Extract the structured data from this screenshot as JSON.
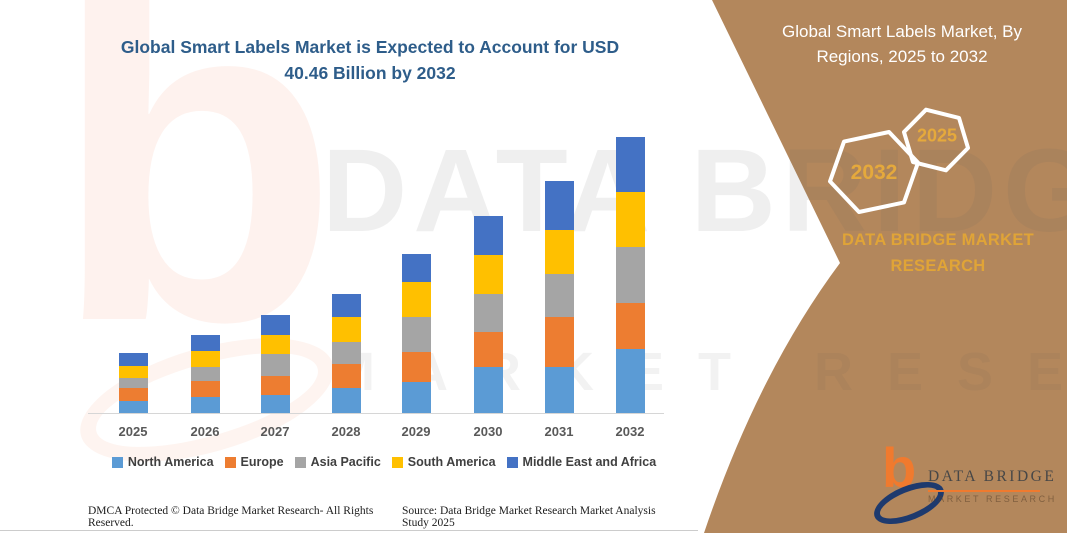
{
  "title": "Global Smart Labels Market is Expected to Account for USD 40.46 Billion by 2032",
  "panel": {
    "heading": "Global Smart Labels Market, By Regions, 2025 to 2032",
    "hexagon_left_year": "2032",
    "hexagon_right_year": "2025",
    "brand_text": "DATA BRIDGE MARKET RESEARCH",
    "colors": {
      "panel_bg": "#b3875c",
      "gold_text": "#e0a437",
      "hex_stroke": "#ffffff"
    }
  },
  "watermark": {
    "letter": "b",
    "line1": "DATA BRIDGE",
    "line2": "MARKET RESEARCH"
  },
  "logo": {
    "mark": "b",
    "name": "DATA BRIDGE",
    "tagline": "MARKET RESEARCH"
  },
  "footer": {
    "left": "DMCA Protected © Data Bridge Market Research-  All Rights Reserved.",
    "right": "Source: Data Bridge Market Research  Market Analysis Study 2025"
  },
  "chart_data": {
    "type": "bar",
    "stacked": true,
    "title": "Global Smart Labels Market is Expected to Account for USD 40.46 Billion by 2032",
    "unit": "USD Billion (estimated from bar heights; no value axis shown)",
    "categories": [
      "2025",
      "2026",
      "2027",
      "2028",
      "2029",
      "2030",
      "2031",
      "2032"
    ],
    "series": [
      {
        "name": "North America",
        "color": "#5B9BD5",
        "values": [
          1.76,
          2.35,
          2.6,
          3.67,
          4.55,
          6.74,
          6.74,
          9.38
        ]
      },
      {
        "name": "Europe",
        "color": "#ED7D31",
        "values": [
          1.91,
          2.35,
          2.79,
          3.52,
          4.4,
          5.13,
          7.33,
          6.74
        ]
      },
      {
        "name": "Asia Pacific",
        "color": "#A5A5A5",
        "values": [
          1.47,
          2.05,
          3.33,
          3.23,
          5.13,
          5.62,
          6.3,
          8.21
        ]
      },
      {
        "name": "South America",
        "color": "#FFC000",
        "values": [
          1.76,
          2.35,
          2.68,
          3.67,
          5.13,
          5.62,
          6.45,
          8.06
        ]
      },
      {
        "name": "Middle East and Africa",
        "color": "#4472C4",
        "values": [
          1.91,
          2.4,
          2.93,
          3.37,
          4.11,
          5.72,
          7.18,
          8.06
        ]
      }
    ],
    "totals_estimated": [
      8.81,
      11.5,
      14.33,
      17.46,
      23.32,
      28.83,
      34.0,
      40.45
    ],
    "final_year_value_from_title": 40.46,
    "xlabel": "",
    "ylabel": "",
    "ylim": [
      0,
      42
    ],
    "gridlines": false,
    "value_axis_visible": false,
    "legend_position": "bottom"
  }
}
